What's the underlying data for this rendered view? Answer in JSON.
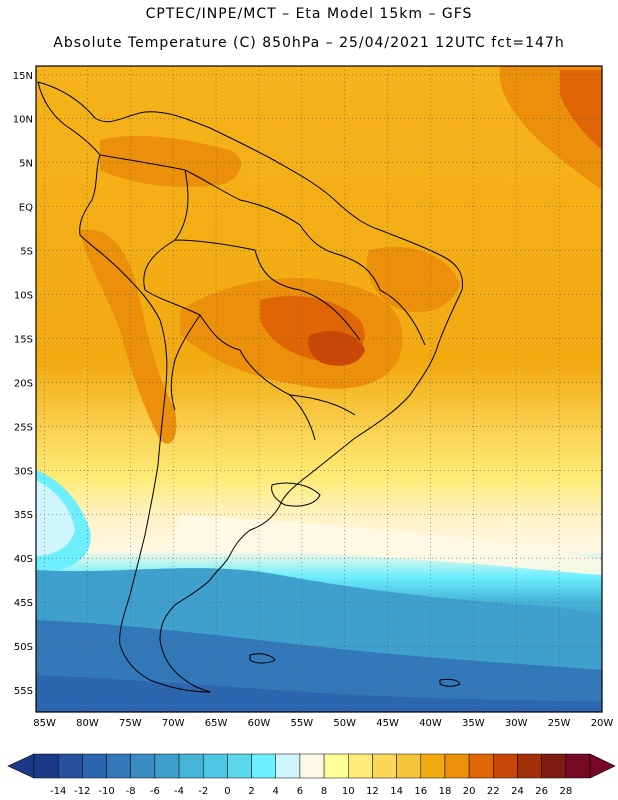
{
  "header": {
    "line1": "CPTEC/INPE/MCT –   Eta Model 15km – GFS",
    "line2": "Absolute Temperature (C) 850hPa – 25/04/2021 12UTC fct=147h"
  },
  "map": {
    "lat_labels": [
      "15N",
      "10N",
      "5N",
      "EQ",
      "5S",
      "10S",
      "15S",
      "20S",
      "25S",
      "30S",
      "35S",
      "40S",
      "45S",
      "50S",
      "55S"
    ],
    "lat_values": [
      15,
      10,
      5,
      0,
      -5,
      -10,
      -15,
      -20,
      -25,
      -30,
      -35,
      -40,
      -45,
      -50,
      -55
    ],
    "lon_labels": [
      "85W",
      "80W",
      "75W",
      "70W",
      "65W",
      "60W",
      "55W",
      "50W",
      "45W",
      "40W",
      "35W",
      "30W",
      "25W",
      "20W"
    ],
    "lon_values": [
      -85,
      -80,
      -75,
      -70,
      -65,
      -60,
      -55,
      -50,
      -45,
      -40,
      -35,
      -30,
      -25,
      -20
    ],
    "lon_range": [
      -86,
      -20
    ],
    "lat_range": [
      -57.5,
      16
    ]
  },
  "colorbar": {
    "labels": [
      "-14",
      "-12",
      "-10",
      "-8",
      "-6",
      "-4",
      "-2",
      "0",
      "2",
      "4",
      "6",
      "8",
      "10",
      "12",
      "14",
      "16",
      "18",
      "20",
      "22",
      "24",
      "26",
      "28"
    ],
    "colors": [
      "#1c3a8a",
      "#27519c",
      "#2c66ae",
      "#3379b9",
      "#3a8cc4",
      "#40a0cd",
      "#45b4d8",
      "#4fc6e2",
      "#5cd8ec",
      "#6eefff",
      "#cff5ff",
      "#fff8e4",
      "#ffff99",
      "#fdec78",
      "#fbd85a",
      "#f5c43b",
      "#f2aa11",
      "#ec8f0a",
      "#e06504",
      "#c84608",
      "#a2300b",
      "#7d1c12",
      "#760825"
    ]
  }
}
